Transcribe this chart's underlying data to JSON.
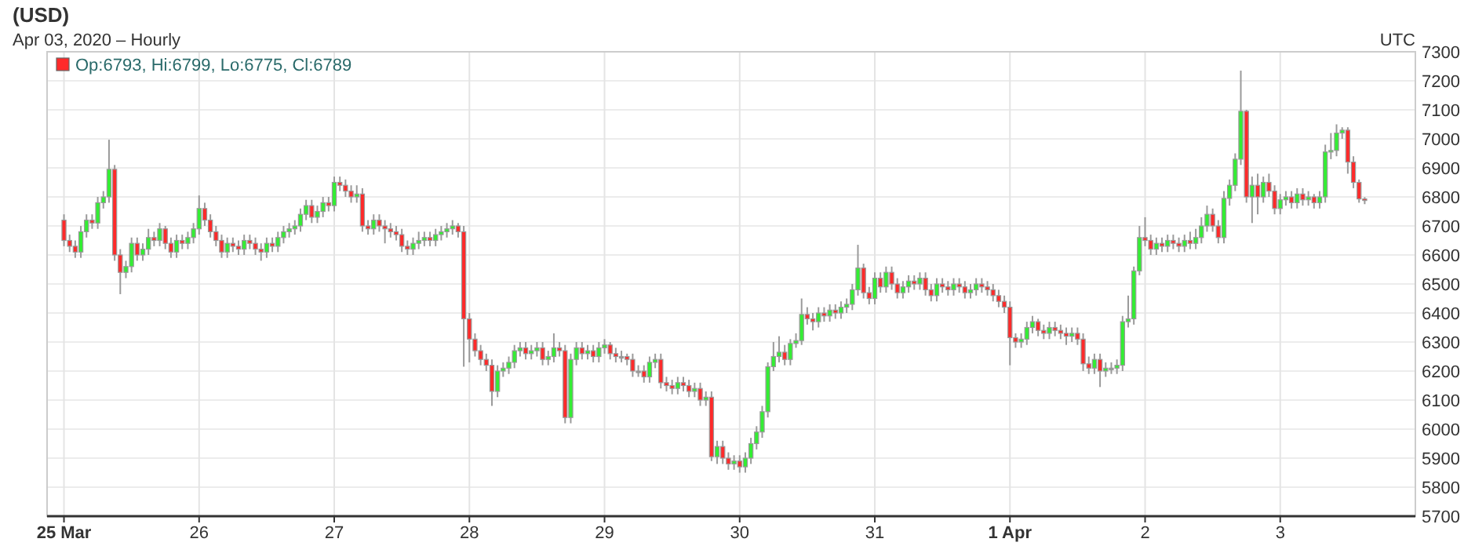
{
  "chart_data": {
    "type": "candlestick",
    "title": "(USD)",
    "subtitle": "Apr 03, 2020 – Hourly",
    "annotations": [
      "UTC",
      "Op:6793, Hi:6799, Lo:6775, Cl:6789"
    ],
    "grid": true,
    "xlim": [
      "2020-03-24T21:00",
      "2020-04-04T00:00"
    ],
    "xticks": [
      {
        "value": "2020-03-25T00:00",
        "label": "25 Mar"
      },
      {
        "value": "2020-03-26T00:00",
        "label": "26"
      },
      {
        "value": "2020-03-27T00:00",
        "label": "27"
      },
      {
        "value": "2020-03-28T00:00",
        "label": "28"
      },
      {
        "value": "2020-03-29T00:00",
        "label": "29"
      },
      {
        "value": "2020-03-30T00:00",
        "label": "30"
      },
      {
        "value": "2020-03-31T00:00",
        "label": "31"
      },
      {
        "value": "2020-04-01T00:00",
        "label": "1 Apr"
      },
      {
        "value": "2020-04-02T00:00",
        "label": "2"
      },
      {
        "value": "2020-04-03T00:00",
        "label": "3"
      }
    ],
    "ylim": [
      5700,
      7300
    ],
    "yticks": [
      5700,
      5800,
      5900,
      6000,
      6100,
      6200,
      6300,
      6400,
      6500,
      6600,
      6700,
      6800,
      6900,
      7000,
      7100,
      7200,
      7300
    ],
    "x": [
      "2020-03-25T00:00",
      "2020-03-25T01:00",
      "2020-03-25T02:00",
      "2020-03-25T03:00",
      "2020-03-25T04:00",
      "2020-03-25T05:00",
      "2020-03-25T06:00",
      "2020-03-25T07:00",
      "2020-03-25T08:00",
      "2020-03-25T09:00",
      "2020-03-25T10:00",
      "2020-03-25T11:00",
      "2020-03-25T12:00",
      "2020-03-25T13:00",
      "2020-03-25T14:00",
      "2020-03-25T15:00",
      "2020-03-25T16:00",
      "2020-03-25T17:00",
      "2020-03-25T18:00",
      "2020-03-25T19:00",
      "2020-03-25T20:00",
      "2020-03-25T21:00",
      "2020-03-25T22:00",
      "2020-03-25T23:00",
      "2020-03-26T00:00",
      "2020-03-26T01:00",
      "2020-03-26T02:00",
      "2020-03-26T03:00",
      "2020-03-26T04:00",
      "2020-03-26T05:00",
      "2020-03-26T06:00",
      "2020-03-26T07:00",
      "2020-03-26T08:00",
      "2020-03-26T09:00",
      "2020-03-26T10:00",
      "2020-03-26T11:00",
      "2020-03-26T12:00",
      "2020-03-26T13:00",
      "2020-03-26T14:00",
      "2020-03-26T15:00",
      "2020-03-26T16:00",
      "2020-03-26T17:00",
      "2020-03-26T18:00",
      "2020-03-26T19:00",
      "2020-03-26T20:00",
      "2020-03-26T21:00",
      "2020-03-26T22:00",
      "2020-03-26T23:00",
      "2020-03-27T00:00",
      "2020-03-27T01:00",
      "2020-03-27T02:00",
      "2020-03-27T03:00",
      "2020-03-27T04:00",
      "2020-03-27T05:00",
      "2020-03-27T06:00",
      "2020-03-27T07:00",
      "2020-03-27T08:00",
      "2020-03-27T09:00",
      "2020-03-27T10:00",
      "2020-03-27T11:00",
      "2020-03-27T12:00",
      "2020-03-27T13:00",
      "2020-03-27T14:00",
      "2020-03-27T15:00",
      "2020-03-27T16:00",
      "2020-03-27T17:00",
      "2020-03-27T18:00",
      "2020-03-27T19:00",
      "2020-03-27T20:00",
      "2020-03-27T21:00",
      "2020-03-27T22:00",
      "2020-03-27T23:00",
      "2020-03-28T00:00",
      "2020-03-28T01:00",
      "2020-03-28T02:00",
      "2020-03-28T03:00",
      "2020-03-28T04:00",
      "2020-03-28T05:00",
      "2020-03-28T06:00",
      "2020-03-28T07:00",
      "2020-03-28T08:00",
      "2020-03-28T09:00",
      "2020-03-28T10:00",
      "2020-03-28T11:00",
      "2020-03-28T12:00",
      "2020-03-28T13:00",
      "2020-03-28T14:00",
      "2020-03-28T15:00",
      "2020-03-28T16:00",
      "2020-03-28T17:00",
      "2020-03-28T18:00",
      "2020-03-28T19:00",
      "2020-03-28T20:00",
      "2020-03-28T21:00",
      "2020-03-28T22:00",
      "2020-03-28T23:00",
      "2020-03-29T00:00",
      "2020-03-29T01:00",
      "2020-03-29T02:00",
      "2020-03-29T03:00",
      "2020-03-29T04:00",
      "2020-03-29T05:00",
      "2020-03-29T06:00",
      "2020-03-29T07:00",
      "2020-03-29T08:00",
      "2020-03-29T09:00",
      "2020-03-29T10:00",
      "2020-03-29T11:00",
      "2020-03-29T12:00",
      "2020-03-29T13:00",
      "2020-03-29T14:00",
      "2020-03-29T15:00",
      "2020-03-29T16:00",
      "2020-03-29T17:00",
      "2020-03-29T18:00",
      "2020-03-29T19:00",
      "2020-03-29T20:00",
      "2020-03-29T21:00",
      "2020-03-29T22:00",
      "2020-03-29T23:00",
      "2020-03-30T00:00",
      "2020-03-30T01:00",
      "2020-03-30T02:00",
      "2020-03-30T03:00",
      "2020-03-30T04:00",
      "2020-03-30T05:00",
      "2020-03-30T06:00",
      "2020-03-30T07:00",
      "2020-03-30T08:00",
      "2020-03-30T09:00",
      "2020-03-30T10:00",
      "2020-03-30T11:00",
      "2020-03-30T12:00",
      "2020-03-30T13:00",
      "2020-03-30T14:00",
      "2020-03-30T15:00",
      "2020-03-30T16:00",
      "2020-03-30T17:00",
      "2020-03-30T18:00",
      "2020-03-30T19:00",
      "2020-03-30T20:00",
      "2020-03-30T21:00",
      "2020-03-30T22:00",
      "2020-03-30T23:00",
      "2020-03-31T00:00",
      "2020-03-31T01:00",
      "2020-03-31T02:00",
      "2020-03-31T03:00",
      "2020-03-31T04:00",
      "2020-03-31T05:00",
      "2020-03-31T06:00",
      "2020-03-31T07:00",
      "2020-03-31T08:00",
      "2020-03-31T09:00",
      "2020-03-31T10:00",
      "2020-03-31T11:00",
      "2020-03-31T12:00",
      "2020-03-31T13:00",
      "2020-03-31T14:00",
      "2020-03-31T15:00",
      "2020-03-31T16:00",
      "2020-03-31T17:00",
      "2020-03-31T18:00",
      "2020-03-31T19:00",
      "2020-03-31T20:00",
      "2020-03-31T21:00",
      "2020-03-31T22:00",
      "2020-03-31T23:00",
      "2020-04-01T00:00",
      "2020-04-01T01:00",
      "2020-04-01T02:00",
      "2020-04-01T03:00",
      "2020-04-01T04:00",
      "2020-04-01T05:00",
      "2020-04-01T06:00",
      "2020-04-01T07:00",
      "2020-04-01T08:00",
      "2020-04-01T09:00",
      "2020-04-01T10:00",
      "2020-04-01T11:00",
      "2020-04-01T12:00",
      "2020-04-01T13:00",
      "2020-04-01T14:00",
      "2020-04-01T15:00",
      "2020-04-01T16:00",
      "2020-04-01T17:00",
      "2020-04-01T18:00",
      "2020-04-01T19:00",
      "2020-04-01T20:00",
      "2020-04-01T21:00",
      "2020-04-01T22:00",
      "2020-04-01T23:00",
      "2020-04-02T00:00",
      "2020-04-02T01:00",
      "2020-04-02T02:00",
      "2020-04-02T03:00",
      "2020-04-02T04:00",
      "2020-04-02T05:00",
      "2020-04-02T06:00",
      "2020-04-02T07:00",
      "2020-04-02T08:00",
      "2020-04-02T09:00",
      "2020-04-02T10:00",
      "2020-04-02T11:00",
      "2020-04-02T12:00",
      "2020-04-02T13:00",
      "2020-04-02T14:00",
      "2020-04-02T15:00",
      "2020-04-02T16:00",
      "2020-04-02T17:00",
      "2020-04-02T18:00",
      "2020-04-02T19:00",
      "2020-04-02T20:00",
      "2020-04-02T21:00",
      "2020-04-02T22:00",
      "2020-04-02T23:00",
      "2020-04-03T00:00",
      "2020-04-03T01:00",
      "2020-04-03T02:00",
      "2020-04-03T03:00",
      "2020-04-03T04:00",
      "2020-04-03T05:00",
      "2020-04-03T06:00",
      "2020-04-03T07:00",
      "2020-04-03T08:00",
      "2020-04-03T09:00",
      "2020-04-03T10:00",
      "2020-04-03T11:00",
      "2020-04-03T12:00",
      "2020-04-03T13:00",
      "2020-04-03T14:00",
      "2020-04-03T15:00"
    ],
    "ohlc": [
      [
        6720,
        6740,
        6630,
        6650
      ],
      [
        6650,
        6670,
        6610,
        6630
      ],
      [
        6630,
        6650,
        6590,
        6610
      ],
      [
        6610,
        6700,
        6590,
        6680
      ],
      [
        6680,
        6740,
        6660,
        6720
      ],
      [
        6720,
        6740,
        6690,
        6710
      ],
      [
        6710,
        6800,
        6690,
        6780
      ],
      [
        6780,
        6820,
        6760,
        6800
      ],
      [
        6800,
        6997,
        6780,
        6895
      ],
      [
        6895,
        6910,
        6580,
        6600
      ],
      [
        6600,
        6620,
        6465,
        6540
      ],
      [
        6540,
        6580,
        6520,
        6560
      ],
      [
        6560,
        6660,
        6540,
        6640
      ],
      [
        6640,
        6660,
        6580,
        6600
      ],
      [
        6600,
        6640,
        6580,
        6620
      ],
      [
        6620,
        6690,
        6600,
        6660
      ],
      [
        6660,
        6680,
        6630,
        6650
      ],
      [
        6650,
        6710,
        6630,
        6690
      ],
      [
        6690,
        6700,
        6620,
        6640
      ],
      [
        6640,
        6660,
        6590,
        6610
      ],
      [
        6610,
        6670,
        6590,
        6650
      ],
      [
        6650,
        6670,
        6620,
        6640
      ],
      [
        6640,
        6680,
        6620,
        6660
      ],
      [
        6660,
        6710,
        6640,
        6690
      ],
      [
        6690,
        6805,
        6670,
        6760
      ],
      [
        6760,
        6780,
        6700,
        6720
      ],
      [
        6720,
        6740,
        6660,
        6680
      ],
      [
        6680,
        6700,
        6630,
        6650
      ],
      [
        6650,
        6670,
        6590,
        6610
      ],
      [
        6610,
        6660,
        6590,
        6640
      ],
      [
        6640,
        6660,
        6610,
        6630
      ],
      [
        6630,
        6650,
        6600,
        6620
      ],
      [
        6620,
        6670,
        6600,
        6650
      ],
      [
        6650,
        6670,
        6620,
        6640
      ],
      [
        6640,
        6660,
        6600,
        6620
      ],
      [
        6620,
        6640,
        6580,
        6610
      ],
      [
        6610,
        6660,
        6590,
        6640
      ],
      [
        6640,
        6660,
        6610,
        6630
      ],
      [
        6630,
        6680,
        6610,
        6660
      ],
      [
        6660,
        6700,
        6640,
        6680
      ],
      [
        6680,
        6710,
        6660,
        6690
      ],
      [
        6690,
        6720,
        6670,
        6700
      ],
      [
        6700,
        6760,
        6680,
        6740
      ],
      [
        6740,
        6790,
        6720,
        6770
      ],
      [
        6770,
        6790,
        6710,
        6730
      ],
      [
        6730,
        6770,
        6710,
        6750
      ],
      [
        6750,
        6800,
        6730,
        6780
      ],
      [
        6780,
        6800,
        6750,
        6770
      ],
      [
        6770,
        6870,
        6750,
        6850
      ],
      [
        6850,
        6870,
        6820,
        6840
      ],
      [
        6840,
        6860,
        6800,
        6820
      ],
      [
        6820,
        6840,
        6780,
        6800
      ],
      [
        6800,
        6840,
        6780,
        6810
      ],
      [
        6810,
        6830,
        6680,
        6700
      ],
      [
        6700,
        6720,
        6670,
        6690
      ],
      [
        6690,
        6740,
        6670,
        6720
      ],
      [
        6720,
        6740,
        6680,
        6700
      ],
      [
        6700,
        6720,
        6640,
        6690
      ],
      [
        6690,
        6710,
        6660,
        6680
      ],
      [
        6680,
        6700,
        6650,
        6670
      ],
      [
        6670,
        6690,
        6610,
        6630
      ],
      [
        6630,
        6650,
        6600,
        6620
      ],
      [
        6620,
        6660,
        6600,
        6640
      ],
      [
        6640,
        6680,
        6620,
        6650
      ],
      [
        6650,
        6680,
        6630,
        6660
      ],
      [
        6660,
        6680,
        6630,
        6650
      ],
      [
        6650,
        6690,
        6630,
        6670
      ],
      [
        6670,
        6700,
        6650,
        6680
      ],
      [
        6680,
        6710,
        6660,
        6690
      ],
      [
        6690,
        6720,
        6670,
        6700
      ],
      [
        6700,
        6710,
        6660,
        6680
      ],
      [
        6680,
        6700,
        6215,
        6380
      ],
      [
        6380,
        6400,
        6230,
        6310
      ],
      [
        6310,
        6330,
        6250,
        6270
      ],
      [
        6270,
        6290,
        6220,
        6240
      ],
      [
        6240,
        6260,
        6200,
        6220
      ],
      [
        6220,
        6240,
        6080,
        6130
      ],
      [
        6130,
        6220,
        6110,
        6200
      ],
      [
        6200,
        6230,
        6180,
        6210
      ],
      [
        6210,
        6250,
        6190,
        6230
      ],
      [
        6230,
        6290,
        6210,
        6270
      ],
      [
        6270,
        6300,
        6250,
        6280
      ],
      [
        6280,
        6300,
        6240,
        6260
      ],
      [
        6260,
        6290,
        6240,
        6270
      ],
      [
        6270,
        6300,
        6250,
        6280
      ],
      [
        6280,
        6300,
        6220,
        6240
      ],
      [
        6240,
        6270,
        6220,
        6250
      ],
      [
        6250,
        6330,
        6230,
        6280
      ],
      [
        6280,
        6300,
        6250,
        6270
      ],
      [
        6270,
        6290,
        6020,
        6040
      ],
      [
        6040,
        6260,
        6020,
        6240
      ],
      [
        6240,
        6300,
        6220,
        6280
      ],
      [
        6280,
        6300,
        6240,
        6260
      ],
      [
        6260,
        6290,
        6240,
        6270
      ],
      [
        6270,
        6290,
        6230,
        6250
      ],
      [
        6250,
        6300,
        6230,
        6280
      ],
      [
        6280,
        6310,
        6260,
        6290
      ],
      [
        6290,
        6300,
        6240,
        6260
      ],
      [
        6260,
        6280,
        6230,
        6250
      ],
      [
        6250,
        6270,
        6230,
        6250
      ],
      [
        6250,
        6260,
        6220,
        6240
      ],
      [
        6240,
        6260,
        6180,
        6200
      ],
      [
        6200,
        6220,
        6180,
        6200
      ],
      [
        6200,
        6220,
        6160,
        6180
      ],
      [
        6180,
        6250,
        6160,
        6230
      ],
      [
        6230,
        6260,
        6210,
        6240
      ],
      [
        6240,
        6260,
        6140,
        6160
      ],
      [
        6160,
        6180,
        6130,
        6150
      ],
      [
        6150,
        6170,
        6120,
        6140
      ],
      [
        6140,
        6180,
        6120,
        6160
      ],
      [
        6160,
        6180,
        6130,
        6150
      ],
      [
        6150,
        6170,
        6110,
        6130
      ],
      [
        6130,
        6160,
        6110,
        6140
      ],
      [
        6140,
        6160,
        6080,
        6100
      ],
      [
        6100,
        6130,
        6080,
        6110
      ],
      [
        6110,
        6130,
        5890,
        5905
      ],
      [
        5905,
        5960,
        5880,
        5940
      ],
      [
        5940,
        5960,
        5880,
        5900
      ],
      [
        5900,
        5920,
        5860,
        5880
      ],
      [
        5880,
        5910,
        5860,
        5890
      ],
      [
        5890,
        5910,
        5850,
        5870
      ],
      [
        5870,
        5920,
        5850,
        5900
      ],
      [
        5900,
        5970,
        5880,
        5950
      ],
      [
        5950,
        6010,
        5930,
        5990
      ],
      [
        5990,
        6080,
        5970,
        6060
      ],
      [
        6060,
        6230,
        6040,
        6215
      ],
      [
        6215,
        6300,
        6200,
        6250
      ],
      [
        6250,
        6320,
        6230,
        6265
      ],
      [
        6265,
        6290,
        6220,
        6240
      ],
      [
        6240,
        6310,
        6220,
        6295
      ],
      [
        6295,
        6330,
        6280,
        6305
      ],
      [
        6305,
        6450,
        6290,
        6395
      ],
      [
        6395,
        6420,
        6360,
        6380
      ],
      [
        6380,
        6400,
        6340,
        6370
      ],
      [
        6370,
        6420,
        6350,
        6400
      ],
      [
        6400,
        6420,
        6370,
        6390
      ],
      [
        6390,
        6430,
        6370,
        6410
      ],
      [
        6410,
        6430,
        6380,
        6400
      ],
      [
        6400,
        6440,
        6380,
        6420
      ],
      [
        6420,
        6450,
        6400,
        6430
      ],
      [
        6430,
        6500,
        6410,
        6480
      ],
      [
        6480,
        6635,
        6460,
        6555
      ],
      [
        6555,
        6570,
        6450,
        6470
      ],
      [
        6470,
        6490,
        6430,
        6450
      ],
      [
        6450,
        6540,
        6430,
        6520
      ],
      [
        6520,
        6540,
        6470,
        6490
      ],
      [
        6490,
        6560,
        6470,
        6540
      ],
      [
        6540,
        6560,
        6480,
        6500
      ],
      [
        6500,
        6520,
        6450,
        6470
      ],
      [
        6470,
        6510,
        6450,
        6490
      ],
      [
        6490,
        6530,
        6470,
        6510
      ],
      [
        6510,
        6530,
        6480,
        6500
      ],
      [
        6500,
        6540,
        6480,
        6520
      ],
      [
        6520,
        6540,
        6460,
        6480
      ],
      [
        6480,
        6500,
        6440,
        6460
      ],
      [
        6460,
        6520,
        6440,
        6500
      ],
      [
        6500,
        6520,
        6470,
        6490
      ],
      [
        6490,
        6510,
        6460,
        6480
      ],
      [
        6480,
        6520,
        6460,
        6500
      ],
      [
        6500,
        6520,
        6470,
        6490
      ],
      [
        6490,
        6510,
        6450,
        6470
      ],
      [
        6470,
        6500,
        6450,
        6480
      ],
      [
        6480,
        6520,
        6460,
        6500
      ],
      [
        6500,
        6520,
        6470,
        6490
      ],
      [
        6490,
        6510,
        6460,
        6480
      ],
      [
        6480,
        6500,
        6440,
        6460
      ],
      [
        6460,
        6480,
        6420,
        6440
      ],
      [
        6440,
        6460,
        6400,
        6420
      ],
      [
        6420,
        6440,
        6220,
        6315
      ],
      [
        6315,
        6330,
        6280,
        6300
      ],
      [
        6300,
        6330,
        6280,
        6310
      ],
      [
        6310,
        6370,
        6290,
        6350
      ],
      [
        6350,
        6390,
        6330,
        6370
      ],
      [
        6370,
        6380,
        6320,
        6340
      ],
      [
        6340,
        6360,
        6310,
        6330
      ],
      [
        6330,
        6370,
        6310,
        6350
      ],
      [
        6350,
        6370,
        6320,
        6340
      ],
      [
        6340,
        6360,
        6310,
        6330
      ],
      [
        6330,
        6350,
        6290,
        6320
      ],
      [
        6320,
        6350,
        6300,
        6330
      ],
      [
        6330,
        6350,
        6290,
        6310
      ],
      [
        6310,
        6330,
        6200,
        6225
      ],
      [
        6225,
        6250,
        6190,
        6210
      ],
      [
        6210,
        6260,
        6190,
        6240
      ],
      [
        6240,
        6260,
        6145,
        6200
      ],
      [
        6200,
        6230,
        6180,
        6210
      ],
      [
        6210,
        6230,
        6190,
        6210
      ],
      [
        6210,
        6240,
        6190,
        6220
      ],
      [
        6220,
        6390,
        6200,
        6370
      ],
      [
        6370,
        6460,
        6350,
        6380
      ],
      [
        6380,
        6560,
        6360,
        6545
      ],
      [
        6545,
        6700,
        6530,
        6660
      ],
      [
        6660,
        6730,
        6630,
        6650
      ],
      [
        6650,
        6670,
        6600,
        6620
      ],
      [
        6620,
        6660,
        6600,
        6640
      ],
      [
        6640,
        6660,
        6610,
        6630
      ],
      [
        6630,
        6670,
        6610,
        6650
      ],
      [
        6650,
        6670,
        6620,
        6640
      ],
      [
        6640,
        6660,
        6610,
        6630
      ],
      [
        6630,
        6670,
        6610,
        6650
      ],
      [
        6650,
        6680,
        6620,
        6640
      ],
      [
        6640,
        6690,
        6620,
        6660
      ],
      [
        6660,
        6730,
        6640,
        6700
      ],
      [
        6700,
        6770,
        6680,
        6740
      ],
      [
        6740,
        6760,
        6680,
        6700
      ],
      [
        6700,
        6720,
        6640,
        6660
      ],
      [
        6660,
        6820,
        6640,
        6795
      ],
      [
        6795,
        6860,
        6770,
        6840
      ],
      [
        6840,
        6950,
        6820,
        6930
      ],
      [
        6930,
        7235,
        6910,
        7095
      ],
      [
        7095,
        7100,
        6780,
        6800
      ],
      [
        6800,
        6870,
        6710,
        6840
      ],
      [
        6840,
        6880,
        6740,
        6800
      ],
      [
        6800,
        6870,
        6780,
        6850
      ],
      [
        6850,
        6880,
        6800,
        6820
      ],
      [
        6820,
        6840,
        6740,
        6760
      ],
      [
        6760,
        6810,
        6740,
        6790
      ],
      [
        6790,
        6820,
        6770,
        6800
      ],
      [
        6800,
        6820,
        6760,
        6780
      ],
      [
        6780,
        6830,
        6760,
        6810
      ],
      [
        6810,
        6830,
        6770,
        6790
      ],
      [
        6790,
        6820,
        6770,
        6800
      ],
      [
        6800,
        6810,
        6760,
        6780
      ],
      [
        6780,
        6820,
        6760,
        6800
      ],
      [
        6800,
        6980,
        6780,
        6955
      ],
      [
        6955,
        7020,
        6930,
        6960
      ],
      [
        6960,
        7050,
        6940,
        7020
      ],
      [
        7020,
        7040,
        7000,
        7030
      ],
      [
        7030,
        7040,
        6880,
        6920
      ],
      [
        6920,
        6940,
        6830,
        6850
      ],
      [
        6850,
        6860,
        6780,
        6793
      ],
      [
        6793,
        6799,
        6775,
        6789
      ]
    ]
  }
}
